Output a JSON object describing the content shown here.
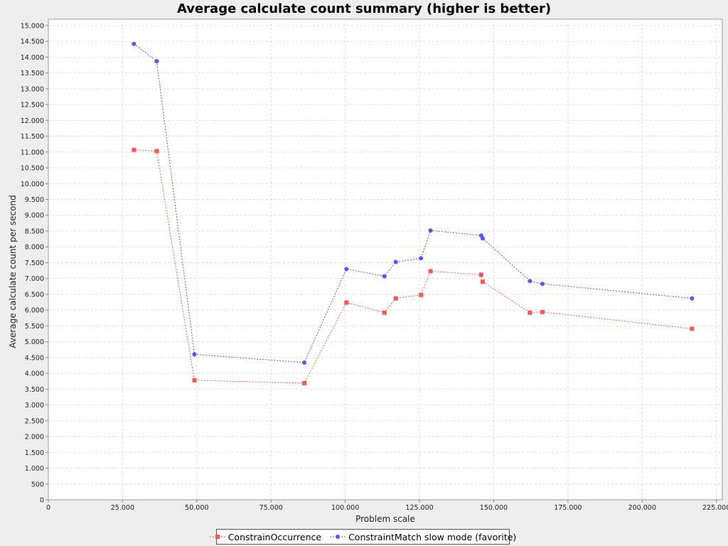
{
  "chart_data": {
    "type": "line",
    "title": "Average calculate count summary (higher is better)",
    "xlabel": "Problem scale",
    "ylabel": "Average calculate count per second",
    "xlim": [
      0,
      227000
    ],
    "ylim": [
      0,
      15200
    ],
    "x_ticks": [
      0,
      25000,
      50000,
      75000,
      100000,
      125000,
      150000,
      175000,
      200000,
      225000
    ],
    "x_tick_labels": [
      "0",
      "25.000",
      "50.000",
      "75.000",
      "100.000",
      "125.000",
      "150.000",
      "175.000",
      "200.000",
      "225.000"
    ],
    "y_ticks": [
      0,
      500,
      1000,
      1500,
      2000,
      2500,
      3000,
      3500,
      4000,
      4500,
      5000,
      5500,
      6000,
      6500,
      7000,
      7500,
      8000,
      8500,
      9000,
      9500,
      10000,
      10500,
      11000,
      11500,
      12000,
      12500,
      13000,
      13500,
      14000,
      14500,
      15000
    ],
    "y_tick_labels": [
      "0",
      "500",
      "1.000",
      "1.500",
      "2.000",
      "2.500",
      "3.000",
      "3.500",
      "4.000",
      "4.500",
      "5.000",
      "5.500",
      "6.000",
      "6.500",
      "7.000",
      "7.500",
      "8.000",
      "8.500",
      "9.000",
      "9.500",
      "10.000",
      "10.500",
      "11.000",
      "11.500",
      "12.000",
      "12.500",
      "13.000",
      "13.500",
      "14.000",
      "14.500",
      "15.000"
    ],
    "grid": true,
    "legend_position": "bottom",
    "series": [
      {
        "name": "ConstrainOccurrence",
        "color": "#ff5555",
        "marker": "square",
        "points": [
          [
            28800,
            11070
          ],
          [
            36500,
            11030
          ],
          [
            49200,
            3780
          ],
          [
            86200,
            3690
          ],
          [
            100400,
            6240
          ],
          [
            113200,
            5920
          ],
          [
            117000,
            6370
          ],
          [
            125500,
            6480
          ],
          [
            128700,
            7230
          ],
          [
            145800,
            7120
          ],
          [
            146300,
            6900
          ],
          [
            162200,
            5920
          ],
          [
            166400,
            5940
          ],
          [
            216800,
            5410
          ]
        ]
      },
      {
        "name": "ConstraintMatch slow mode (favorite)",
        "color": "#5555ff",
        "marker": "circle",
        "points": [
          [
            28800,
            14420
          ],
          [
            36500,
            13870
          ],
          [
            49200,
            4600
          ],
          [
            86200,
            4340
          ],
          [
            100400,
            7300
          ],
          [
            113200,
            7070
          ],
          [
            117000,
            7520
          ],
          [
            125500,
            7640
          ],
          [
            128700,
            8520
          ],
          [
            145800,
            8360
          ],
          [
            146300,
            8270
          ],
          [
            162200,
            6920
          ],
          [
            166400,
            6830
          ],
          [
            216800,
            6370
          ]
        ]
      }
    ]
  }
}
